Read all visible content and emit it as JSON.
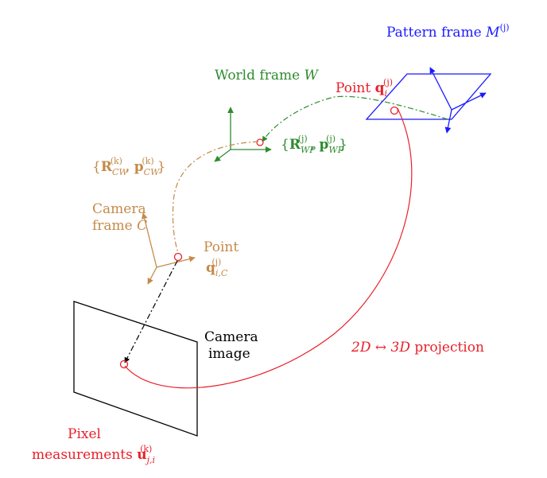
{
  "pattern_frame": {
    "text": "Pattern frame ",
    "symbol": "M",
    "sup": "(j)"
  },
  "world_frame": {
    "text": "World frame ",
    "symbol": "W"
  },
  "point_q": {
    "text": "Point ",
    "symbol": "q",
    "sub": "i",
    "sup": "(j)"
  },
  "world_pattern_transform": {
    "open": "{",
    "R": "R",
    "R_sub": "WP",
    "R_sup": "(j)",
    "sep": ", ",
    "p": "p",
    "p_sub": "WP",
    "p_sup": "(j)",
    "close": "}"
  },
  "camera_world_transform": {
    "open": "{",
    "R": "R",
    "R_sub": "CW",
    "R_sup": "(k)",
    "sep": ", ",
    "p": "p",
    "p_sub": "CW",
    "p_sup": "(k)",
    "close": "}"
  },
  "camera_frame": {
    "line1": "Camera",
    "line2": "frame ",
    "symbol": "C"
  },
  "point_q_camera": {
    "line1": "Point",
    "symbol": "q",
    "sub": "i,C",
    "sup": "(j)"
  },
  "camera_image": {
    "line1": "Camera",
    "line2": "image"
  },
  "projection": {
    "lhs": "2D",
    "arrow": " ↔ ",
    "rhs": "3D",
    "text": " projection"
  },
  "pixel_measurements": {
    "line1": "Pixel",
    "line2": "measurements ",
    "symbol": "u",
    "sub": "j,i",
    "sup": "(k)"
  },
  "colors": {
    "blue": "#1a1aff",
    "green": "#2e8b2e",
    "red": "#e8202a",
    "tan": "#c48a4a",
    "black": "#000000"
  }
}
